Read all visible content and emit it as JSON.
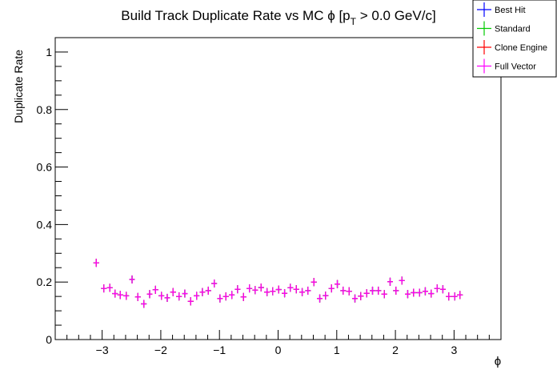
{
  "chart_data": {
    "type": "scatter",
    "title": "Build Track Duplicate Rate vs MC ϕ [p_T > 0.0 GeV/c]",
    "title_main": "Build Track Duplicate Rate vs MC ϕ [p",
    "title_sub": "T",
    "title_end": " > 0.0 GeV/c]",
    "xlabel": "ϕ",
    "ylabel": "Duplicate Rate",
    "xlim": [
      -3.8,
      3.8
    ],
    "ylim": [
      0,
      1.05
    ],
    "xticks": [
      -3,
      -2,
      -1,
      0,
      1,
      2,
      3
    ],
    "xtick_labels": [
      "−3",
      "−2",
      "−1",
      "0",
      "1",
      "2",
      "3"
    ],
    "yticks": [
      0,
      0.2,
      0.4,
      0.6,
      0.8,
      1
    ],
    "ytick_labels": [
      "0",
      "0.2",
      "0.4",
      "0.6",
      "0.8",
      "1"
    ],
    "legend_position": "top-right",
    "x": [
      -3.1,
      -2.97,
      -2.87,
      -2.78,
      -2.69,
      -2.59,
      -2.49,
      -2.39,
      -2.29,
      -2.19,
      -2.09,
      -1.99,
      -1.89,
      -1.79,
      -1.69,
      -1.59,
      -1.49,
      -1.39,
      -1.29,
      -1.19,
      -1.09,
      -0.99,
      -0.89,
      -0.79,
      -0.69,
      -0.59,
      -0.49,
      -0.39,
      -0.29,
      -0.19,
      -0.09,
      0.01,
      0.11,
      0.21,
      0.31,
      0.41,
      0.51,
      0.61,
      0.71,
      0.81,
      0.91,
      1.01,
      1.11,
      1.21,
      1.31,
      1.41,
      1.51,
      1.61,
      1.71,
      1.81,
      1.91,
      2.01,
      2.11,
      2.21,
      2.31,
      2.41,
      2.51,
      2.61,
      2.71,
      2.81,
      2.91,
      3.01,
      3.1
    ],
    "series": [
      {
        "name": "Best Hit",
        "color": "#0000ff",
        "values": [
          0.267,
          0.178,
          0.18,
          0.16,
          0.155,
          0.152,
          0.209,
          0.148,
          0.124,
          0.158,
          0.173,
          0.152,
          0.145,
          0.165,
          0.15,
          0.16,
          0.133,
          0.152,
          0.165,
          0.17,
          0.195,
          0.143,
          0.15,
          0.155,
          0.175,
          0.148,
          0.178,
          0.172,
          0.181,
          0.165,
          0.168,
          0.174,
          0.161,
          0.18,
          0.175,
          0.165,
          0.17,
          0.2,
          0.143,
          0.153,
          0.178,
          0.193,
          0.17,
          0.168,
          0.143,
          0.151,
          0.161,
          0.17,
          0.17,
          0.158,
          0.201,
          0.17,
          0.205,
          0.158,
          0.163,
          0.163,
          0.168,
          0.16,
          0.178,
          0.175,
          0.15,
          0.15,
          0.155
        ]
      },
      {
        "name": "Standard",
        "color": "#00cc00",
        "values": [
          0.267,
          0.178,
          0.18,
          0.16,
          0.155,
          0.152,
          0.209,
          0.148,
          0.124,
          0.158,
          0.173,
          0.152,
          0.145,
          0.165,
          0.15,
          0.16,
          0.133,
          0.152,
          0.165,
          0.17,
          0.195,
          0.143,
          0.15,
          0.155,
          0.175,
          0.148,
          0.178,
          0.172,
          0.181,
          0.165,
          0.168,
          0.174,
          0.161,
          0.18,
          0.175,
          0.165,
          0.17,
          0.2,
          0.143,
          0.153,
          0.178,
          0.193,
          0.17,
          0.168,
          0.143,
          0.151,
          0.161,
          0.17,
          0.17,
          0.158,
          0.201,
          0.17,
          0.205,
          0.158,
          0.163,
          0.163,
          0.168,
          0.16,
          0.178,
          0.175,
          0.15,
          0.15,
          0.155
        ]
      },
      {
        "name": "Clone Engine",
        "color": "#ff0000",
        "values": [
          0.267,
          0.178,
          0.18,
          0.16,
          0.155,
          0.152,
          0.209,
          0.148,
          0.124,
          0.158,
          0.173,
          0.152,
          0.145,
          0.165,
          0.15,
          0.16,
          0.133,
          0.152,
          0.165,
          0.17,
          0.195,
          0.143,
          0.15,
          0.155,
          0.175,
          0.148,
          0.178,
          0.172,
          0.181,
          0.165,
          0.168,
          0.174,
          0.161,
          0.18,
          0.175,
          0.165,
          0.17,
          0.2,
          0.143,
          0.153,
          0.178,
          0.193,
          0.17,
          0.168,
          0.143,
          0.151,
          0.161,
          0.17,
          0.17,
          0.158,
          0.201,
          0.17,
          0.205,
          0.158,
          0.163,
          0.163,
          0.168,
          0.16,
          0.178,
          0.175,
          0.15,
          0.15,
          0.155
        ]
      },
      {
        "name": "Full Vector",
        "color": "#ff00ff",
        "values": [
          0.267,
          0.178,
          0.18,
          0.16,
          0.155,
          0.152,
          0.209,
          0.148,
          0.124,
          0.158,
          0.173,
          0.152,
          0.145,
          0.165,
          0.15,
          0.16,
          0.133,
          0.152,
          0.165,
          0.17,
          0.195,
          0.143,
          0.15,
          0.155,
          0.175,
          0.148,
          0.178,
          0.172,
          0.181,
          0.165,
          0.168,
          0.174,
          0.161,
          0.18,
          0.175,
          0.165,
          0.17,
          0.2,
          0.143,
          0.153,
          0.178,
          0.193,
          0.17,
          0.168,
          0.143,
          0.151,
          0.161,
          0.17,
          0.17,
          0.158,
          0.201,
          0.17,
          0.205,
          0.158,
          0.163,
          0.163,
          0.168,
          0.16,
          0.178,
          0.175,
          0.15,
          0.15,
          0.155
        ]
      }
    ]
  }
}
